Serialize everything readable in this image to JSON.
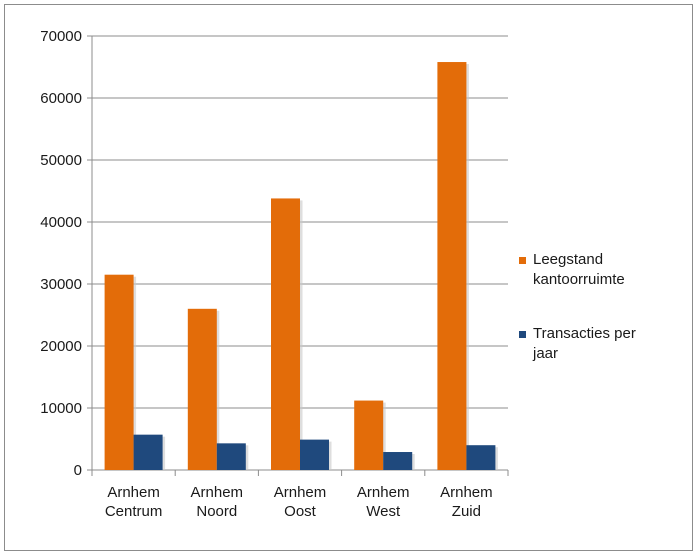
{
  "chart_data": {
    "type": "bar",
    "categories": [
      [
        "Arnhem",
        "Centrum"
      ],
      [
        "Arnhem",
        "Noord"
      ],
      [
        "Arnhem",
        "Oost"
      ],
      [
        "Arnhem",
        "West"
      ],
      [
        "Arnhem",
        "Zuid"
      ]
    ],
    "series": [
      {
        "name": "Leegstand kantoorruimte",
        "legend_lines": [
          "Leegstand",
          "kantoorruimte"
        ],
        "color": "#E36C09",
        "values": [
          31500,
          26000,
          43800,
          11200,
          65800
        ]
      },
      {
        "name": "Transacties per jaar",
        "legend_lines": [
          "Transacties per",
          "jaar"
        ],
        "color": "#1F497D",
        "values": [
          5700,
          4300,
          4900,
          2900,
          4000
        ]
      }
    ],
    "yticks": [
      "0",
      "10000",
      "20000",
      "30000",
      "40000",
      "50000",
      "60000",
      "70000"
    ],
    "ylim": [
      0,
      70000
    ],
    "grid": true,
    "legend_position": "right"
  }
}
